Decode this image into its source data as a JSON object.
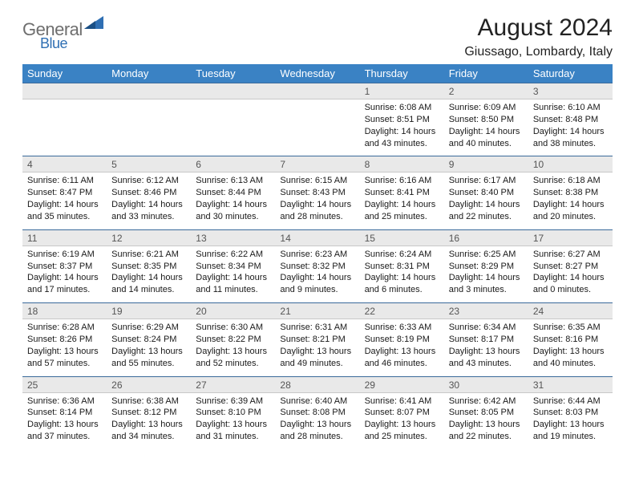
{
  "colors": {
    "header_bg": "#3a82c4",
    "header_text": "#ffffff",
    "daterow_bg": "#e9e9e9",
    "daterow_border_top": "#3a6a9a",
    "body_text": "#1a1a1a",
    "logo_gray": "#6e6e6e",
    "logo_blue": "#2f6fb3"
  },
  "logo": {
    "word1": "General",
    "word2": "Blue"
  },
  "title": "August 2024",
  "location": "Giussago, Lombardy, Italy",
  "day_headers": [
    "Sunday",
    "Monday",
    "Tuesday",
    "Wednesday",
    "Thursday",
    "Friday",
    "Saturday"
  ],
  "weeks": [
    {
      "dates": [
        "",
        "",
        "",
        "",
        "1",
        "2",
        "3"
      ],
      "cells": [
        null,
        null,
        null,
        null,
        {
          "sunrise": "6:08 AM",
          "sunset": "8:51 PM",
          "dl_h": 14,
          "dl_m": 43
        },
        {
          "sunrise": "6:09 AM",
          "sunset": "8:50 PM",
          "dl_h": 14,
          "dl_m": 40
        },
        {
          "sunrise": "6:10 AM",
          "sunset": "8:48 PM",
          "dl_h": 14,
          "dl_m": 38
        }
      ]
    },
    {
      "dates": [
        "4",
        "5",
        "6",
        "7",
        "8",
        "9",
        "10"
      ],
      "cells": [
        {
          "sunrise": "6:11 AM",
          "sunset": "8:47 PM",
          "dl_h": 14,
          "dl_m": 35
        },
        {
          "sunrise": "6:12 AM",
          "sunset": "8:46 PM",
          "dl_h": 14,
          "dl_m": 33
        },
        {
          "sunrise": "6:13 AM",
          "sunset": "8:44 PM",
          "dl_h": 14,
          "dl_m": 30
        },
        {
          "sunrise": "6:15 AM",
          "sunset": "8:43 PM",
          "dl_h": 14,
          "dl_m": 28
        },
        {
          "sunrise": "6:16 AM",
          "sunset": "8:41 PM",
          "dl_h": 14,
          "dl_m": 25
        },
        {
          "sunrise": "6:17 AM",
          "sunset": "8:40 PM",
          "dl_h": 14,
          "dl_m": 22
        },
        {
          "sunrise": "6:18 AM",
          "sunset": "8:38 PM",
          "dl_h": 14,
          "dl_m": 20
        }
      ]
    },
    {
      "dates": [
        "11",
        "12",
        "13",
        "14",
        "15",
        "16",
        "17"
      ],
      "cells": [
        {
          "sunrise": "6:19 AM",
          "sunset": "8:37 PM",
          "dl_h": 14,
          "dl_m": 17
        },
        {
          "sunrise": "6:21 AM",
          "sunset": "8:35 PM",
          "dl_h": 14,
          "dl_m": 14
        },
        {
          "sunrise": "6:22 AM",
          "sunset": "8:34 PM",
          "dl_h": 14,
          "dl_m": 11
        },
        {
          "sunrise": "6:23 AM",
          "sunset": "8:32 PM",
          "dl_h": 14,
          "dl_m": 9
        },
        {
          "sunrise": "6:24 AM",
          "sunset": "8:31 PM",
          "dl_h": 14,
          "dl_m": 6
        },
        {
          "sunrise": "6:25 AM",
          "sunset": "8:29 PM",
          "dl_h": 14,
          "dl_m": 3
        },
        {
          "sunrise": "6:27 AM",
          "sunset": "8:27 PM",
          "dl_h": 14,
          "dl_m": 0
        }
      ]
    },
    {
      "dates": [
        "18",
        "19",
        "20",
        "21",
        "22",
        "23",
        "24"
      ],
      "cells": [
        {
          "sunrise": "6:28 AM",
          "sunset": "8:26 PM",
          "dl_h": 13,
          "dl_m": 57
        },
        {
          "sunrise": "6:29 AM",
          "sunset": "8:24 PM",
          "dl_h": 13,
          "dl_m": 55
        },
        {
          "sunrise": "6:30 AM",
          "sunset": "8:22 PM",
          "dl_h": 13,
          "dl_m": 52
        },
        {
          "sunrise": "6:31 AM",
          "sunset": "8:21 PM",
          "dl_h": 13,
          "dl_m": 49
        },
        {
          "sunrise": "6:33 AM",
          "sunset": "8:19 PM",
          "dl_h": 13,
          "dl_m": 46
        },
        {
          "sunrise": "6:34 AM",
          "sunset": "8:17 PM",
          "dl_h": 13,
          "dl_m": 43
        },
        {
          "sunrise": "6:35 AM",
          "sunset": "8:16 PM",
          "dl_h": 13,
          "dl_m": 40
        }
      ]
    },
    {
      "dates": [
        "25",
        "26",
        "27",
        "28",
        "29",
        "30",
        "31"
      ],
      "cells": [
        {
          "sunrise": "6:36 AM",
          "sunset": "8:14 PM",
          "dl_h": 13,
          "dl_m": 37
        },
        {
          "sunrise": "6:38 AM",
          "sunset": "8:12 PM",
          "dl_h": 13,
          "dl_m": 34
        },
        {
          "sunrise": "6:39 AM",
          "sunset": "8:10 PM",
          "dl_h": 13,
          "dl_m": 31
        },
        {
          "sunrise": "6:40 AM",
          "sunset": "8:08 PM",
          "dl_h": 13,
          "dl_m": 28
        },
        {
          "sunrise": "6:41 AM",
          "sunset": "8:07 PM",
          "dl_h": 13,
          "dl_m": 25
        },
        {
          "sunrise": "6:42 AM",
          "sunset": "8:05 PM",
          "dl_h": 13,
          "dl_m": 22
        },
        {
          "sunrise": "6:44 AM",
          "sunset": "8:03 PM",
          "dl_h": 13,
          "dl_m": 19
        }
      ]
    }
  ],
  "labels": {
    "sunrise_prefix": "Sunrise: ",
    "sunset_prefix": "Sunset: ",
    "daylight_prefix": "Daylight: ",
    "hours_word": " hours",
    "and_word": "and ",
    "minutes_word": " minutes."
  }
}
